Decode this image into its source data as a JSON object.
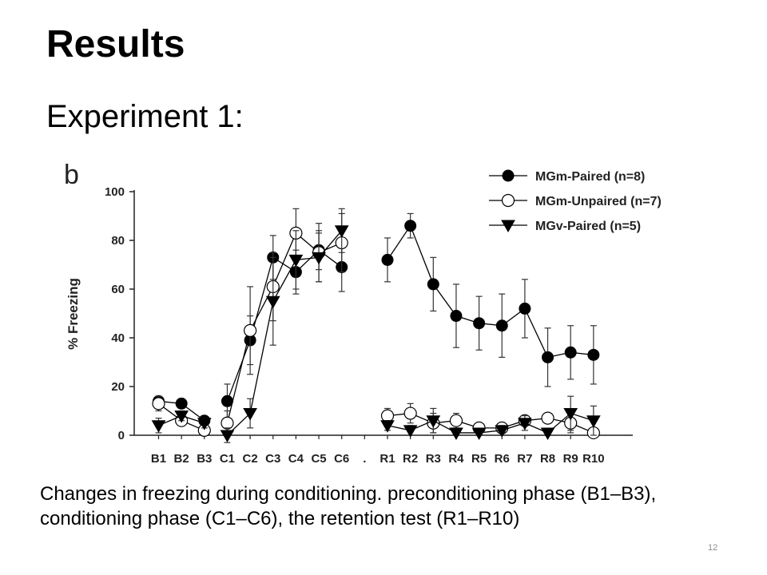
{
  "slide": {
    "title": "Results",
    "subtitle": "Experiment 1:",
    "caption": "Changes in freezing during conditioning. preconditioning phase (B1–B3), conditioning phase (C1–C6), the retention test (R1–R10)",
    "page_number": "12"
  },
  "chart_data": {
    "type": "line",
    "panel_label": "b",
    "ylabel": "% Freezing",
    "ylim": [
      0,
      100
    ],
    "yticks": [
      0,
      20,
      40,
      60,
      80,
      100
    ],
    "categories": [
      "B1",
      "B2",
      "B3",
      "C1",
      "C2",
      "C3",
      "C4",
      "C5",
      "C6",
      ".",
      "R1",
      "R2",
      "R3",
      "R4",
      "R5",
      "R6",
      "R7",
      "R8",
      "R9",
      "R10"
    ],
    "legend_position": "top-right",
    "series": [
      {
        "name": "MGm-Paired (n=8)",
        "marker": "filled-circle",
        "color": "#000000",
        "segments": [
          [
            [
              0,
              14,
              2
            ],
            [
              1,
              13,
              2
            ],
            [
              2,
              6,
              1
            ]
          ],
          [
            [
              3,
              14,
              7
            ],
            [
              4,
              39,
              10
            ],
            [
              5,
              73,
              9
            ],
            [
              6,
              67,
              9
            ],
            [
              7,
              76,
              8
            ],
            [
              8,
              69,
              10
            ]
          ],
          [
            [
              10,
              72,
              9
            ],
            [
              11,
              86,
              5
            ],
            [
              12,
              62,
              11
            ],
            [
              13,
              49,
              13
            ],
            [
              14,
              46,
              11
            ],
            [
              15,
              45,
              13
            ],
            [
              16,
              52,
              12
            ],
            [
              17,
              32,
              12
            ],
            [
              18,
              34,
              11
            ],
            [
              19,
              33,
              12
            ]
          ]
        ]
      },
      {
        "name": "MGm-Unpaired (n=7)",
        "marker": "open-circle",
        "color": "#000000",
        "segments": [
          [
            [
              0,
              13,
              3
            ],
            [
              1,
              6,
              2
            ],
            [
              2,
              2,
              1
            ]
          ],
          [
            [
              3,
              5,
              5
            ],
            [
              4,
              43,
              18
            ],
            [
              5,
              61,
              14
            ],
            [
              6,
              83,
              10
            ],
            [
              7,
              75,
              12
            ],
            [
              8,
              79,
              12
            ]
          ],
          [
            [
              10,
              8,
              3
            ],
            [
              11,
              9,
              4
            ],
            [
              12,
              5,
              4
            ],
            [
              13,
              6,
              3
            ],
            [
              14,
              3,
              2
            ],
            [
              15,
              3,
              2
            ],
            [
              16,
              6,
              2
            ],
            [
              17,
              7,
              2
            ],
            [
              18,
              5,
              4
            ],
            [
              19,
              1,
              2
            ]
          ]
        ]
      },
      {
        "name": "MGv-Paired (n=5)",
        "marker": "filled-triangle-down",
        "color": "#000000",
        "segments": [
          [
            [
              0,
              4,
              3
            ],
            [
              1,
              8,
              2
            ],
            [
              2,
              5,
              2
            ]
          ],
          [
            [
              3,
              0,
              3
            ],
            [
              4,
              9,
              6
            ],
            [
              5,
              55,
              18
            ],
            [
              6,
              72,
              12
            ],
            [
              7,
              73,
              10
            ],
            [
              8,
              84,
              9
            ]
          ],
          [
            [
              10,
              4,
              2
            ],
            [
              11,
              2,
              2
            ],
            [
              12,
              6,
              5
            ],
            [
              13,
              1,
              1
            ],
            [
              14,
              1,
              1
            ],
            [
              15,
              2,
              2
            ],
            [
              16,
              5,
              3
            ],
            [
              17,
              1,
              1
            ],
            [
              18,
              9,
              7
            ],
            [
              19,
              6,
              6
            ]
          ]
        ]
      }
    ]
  }
}
